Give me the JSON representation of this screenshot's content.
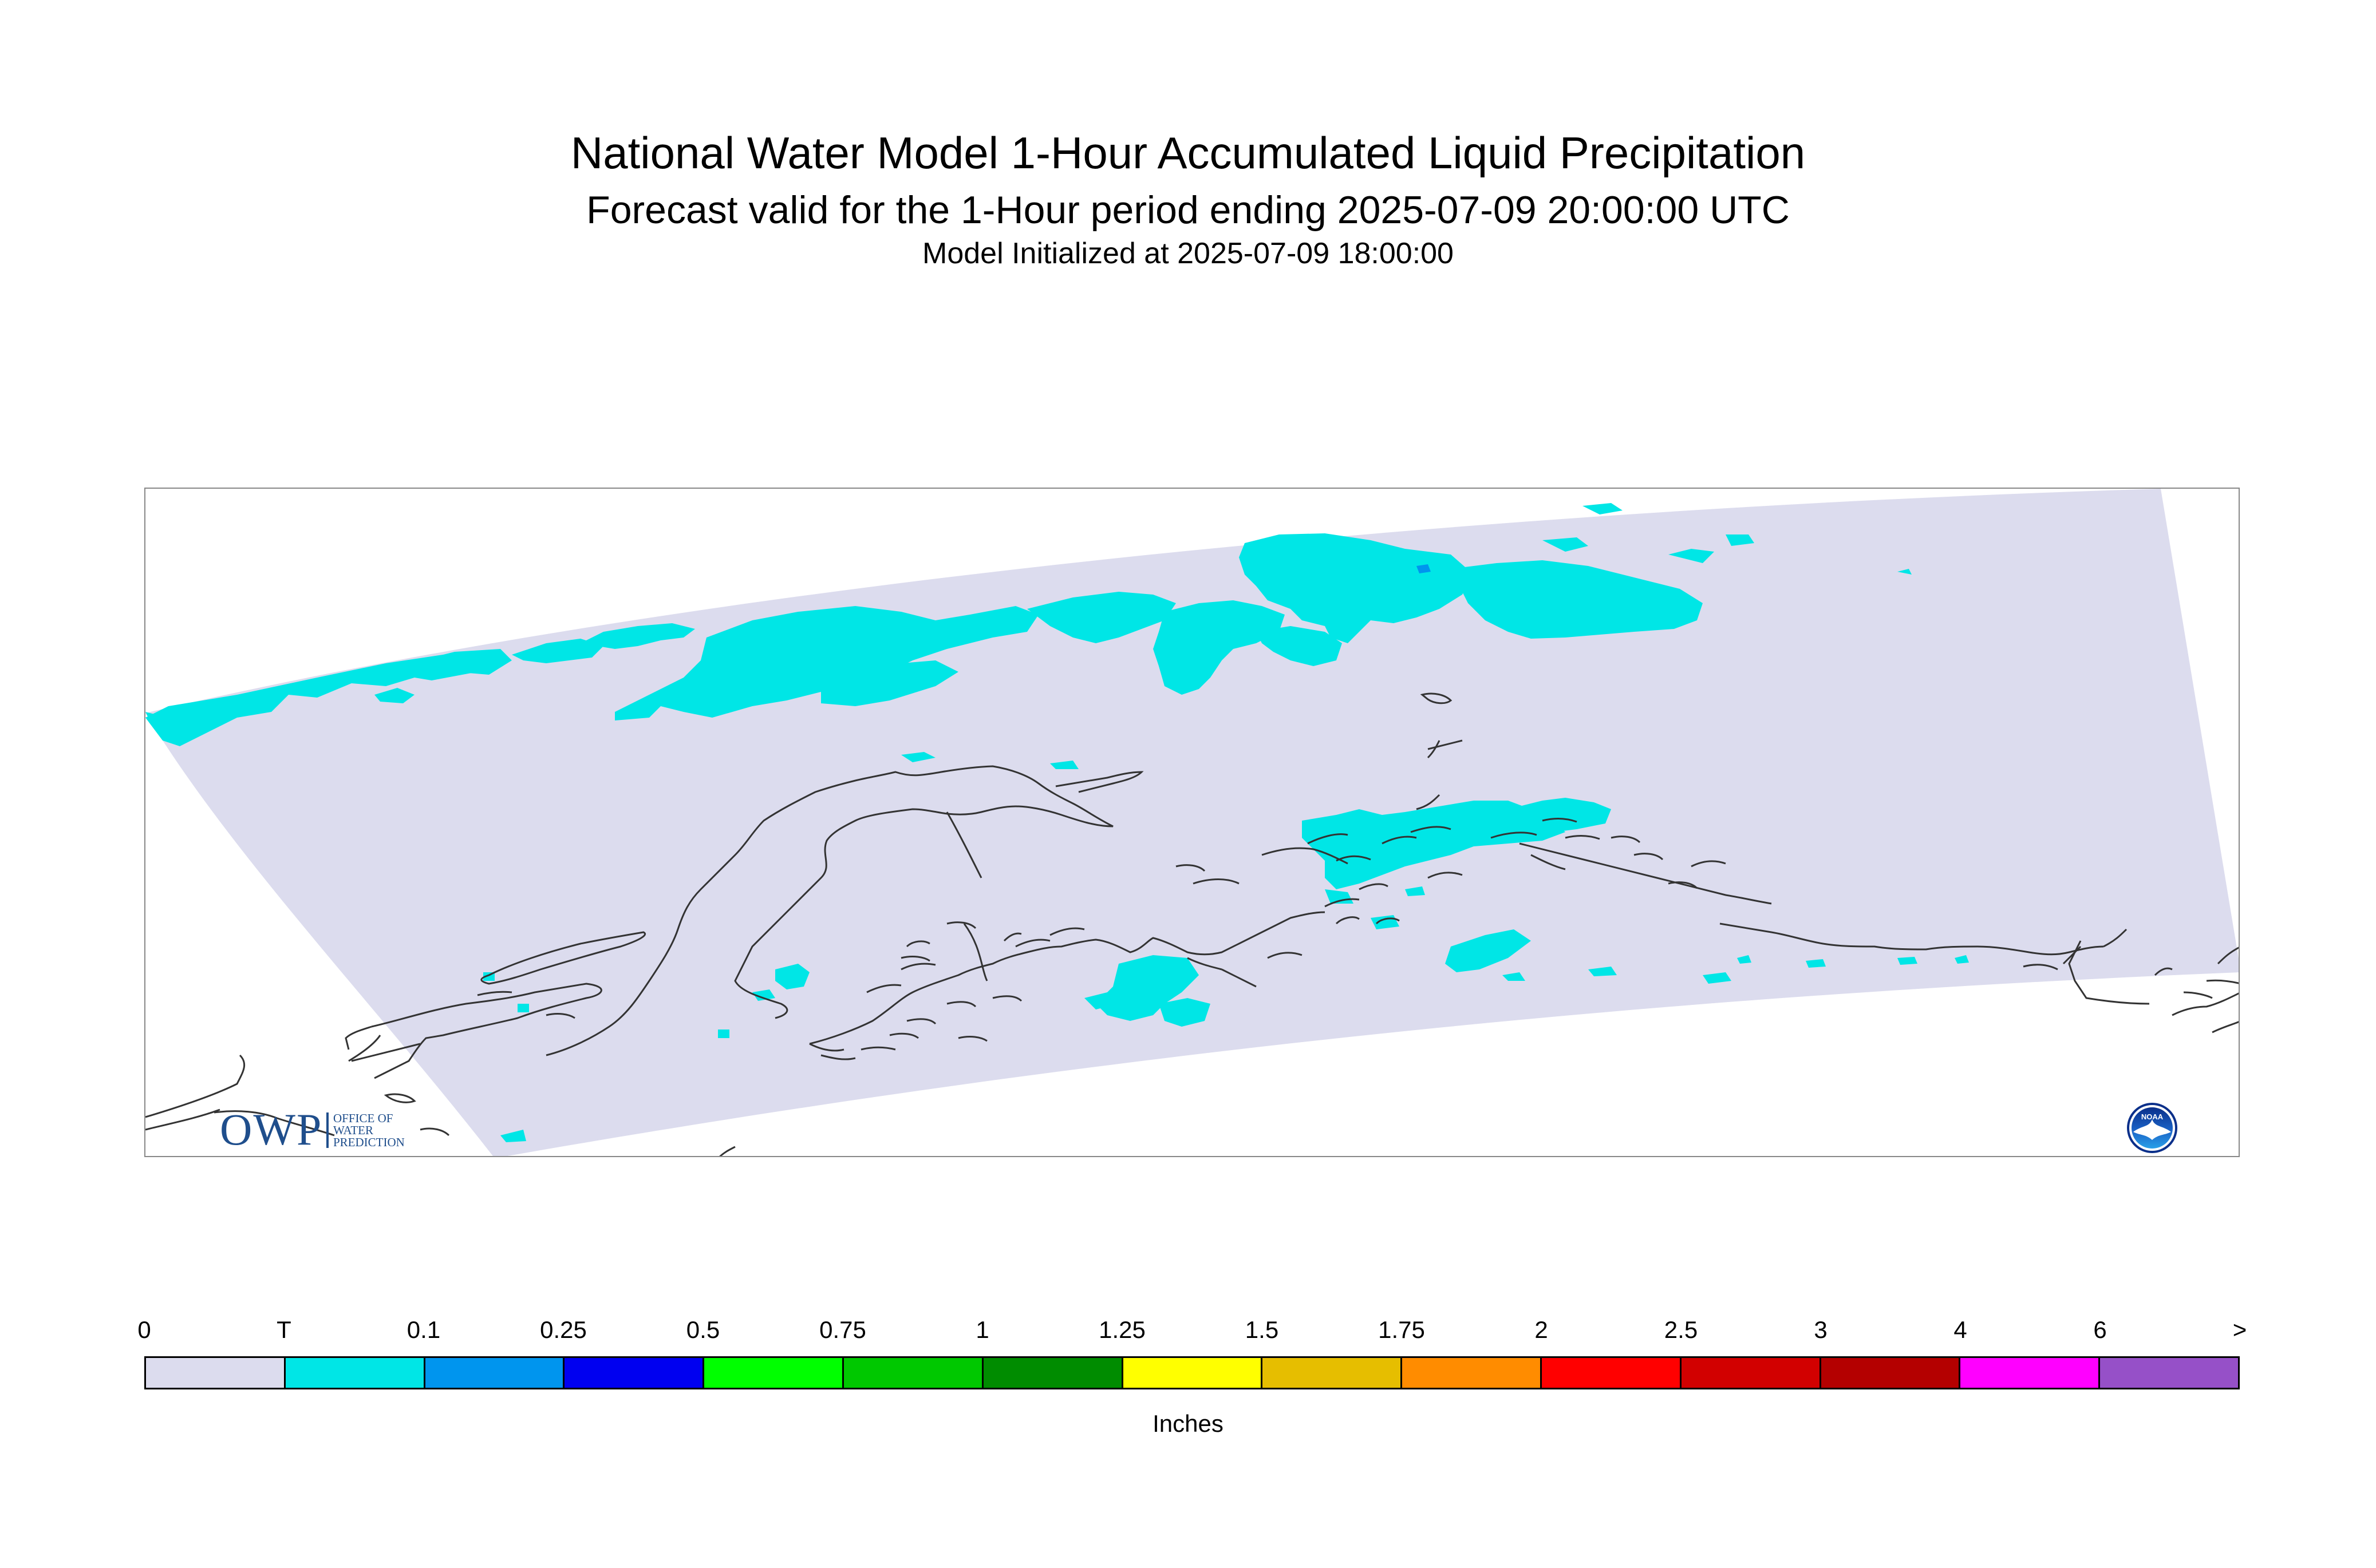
{
  "header": {
    "title": "National Water Model 1-Hour Accumulated Liquid Precipitation",
    "subtitle": "Forecast valid for the 1-Hour period ending 2025-07-09 20:00:00 UTC",
    "init_line": "Model Initialized at 2025-07-09 18:00:00"
  },
  "logos": {
    "owp_letters": "OWP",
    "owp_line1": "OFFICE OF",
    "owp_line2": "WATER",
    "owp_line3": "PREDICTION",
    "noaa_text": "NOAA"
  },
  "legend": {
    "labels": [
      "0",
      "T",
      "0.1",
      "0.25",
      "0.5",
      "0.75",
      "1",
      "1.25",
      "1.5",
      "1.75",
      "2",
      "2.5",
      "3",
      "4",
      "6",
      ">"
    ],
    "colors": [
      "#dcdcee",
      "#00e6e6",
      "#0095ee",
      "#0000f0",
      "#00ff00",
      "#00c800",
      "#008c00",
      "#ffff00",
      "#e6be00",
      "#ff8c00",
      "#ff0000",
      "#d20000",
      "#b40000",
      "#ff00ff",
      "#9650c8"
    ],
    "units": "Inches"
  },
  "map": {
    "domain_color": "#dcdcee",
    "precip_color": "#00e6e6",
    "coast_color": "#333333"
  }
}
